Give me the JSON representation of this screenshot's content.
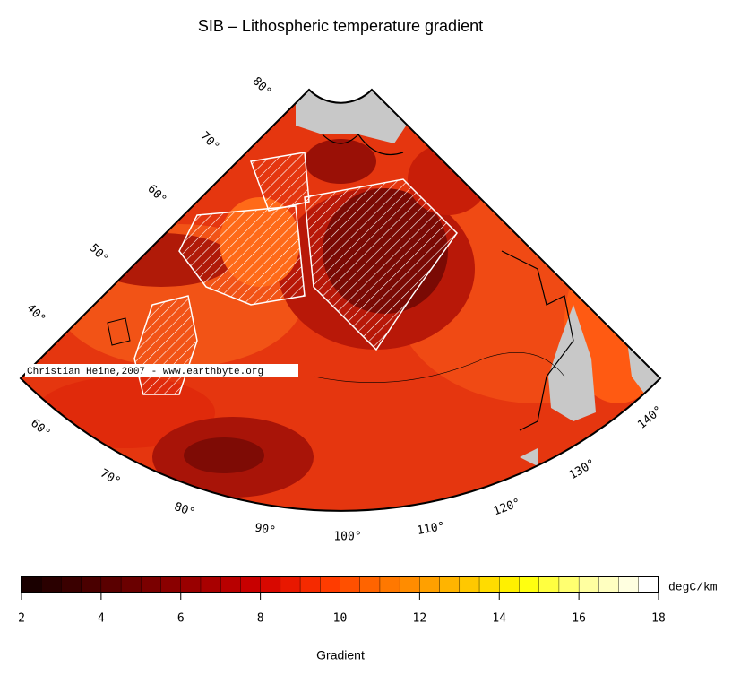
{
  "map": {
    "title": "SIB – Lithospheric temperature gradient",
    "latitude_labels": [
      "80°",
      "70°",
      "60°",
      "50°",
      "40°"
    ],
    "longitude_labels": [
      "60°",
      "70°",
      "80°",
      "90°",
      "100°",
      "110°",
      "120°",
      "130°",
      "140°"
    ],
    "watermark": "Christian Heine,2007 - www.earthbyte.org"
  },
  "colorbar": {
    "lim": [
      2,
      18
    ],
    "ticks": [
      2,
      4,
      6,
      8,
      10,
      12,
      14,
      16,
      18
    ],
    "colors": [
      "#1a0000",
      "#2a0000",
      "#3a0000",
      "#4a0000",
      "#5a0000",
      "#6a0000",
      "#7a0000",
      "#8a0000",
      "#990000",
      "#a80000",
      "#b80000",
      "#c80000",
      "#d80800",
      "#e81800",
      "#f52a00",
      "#ff3c00",
      "#ff5000",
      "#ff6400",
      "#ff7800",
      "#ff8c00",
      "#ffa000",
      "#ffb400",
      "#ffc800",
      "#ffdc00",
      "#fff000",
      "#ffff10",
      "#ffff40",
      "#ffff70",
      "#ffffa0",
      "#ffffc0",
      "#ffffe0",
      "#ffffff"
    ],
    "unit": "degC/km",
    "label": "Gradient"
  }
}
